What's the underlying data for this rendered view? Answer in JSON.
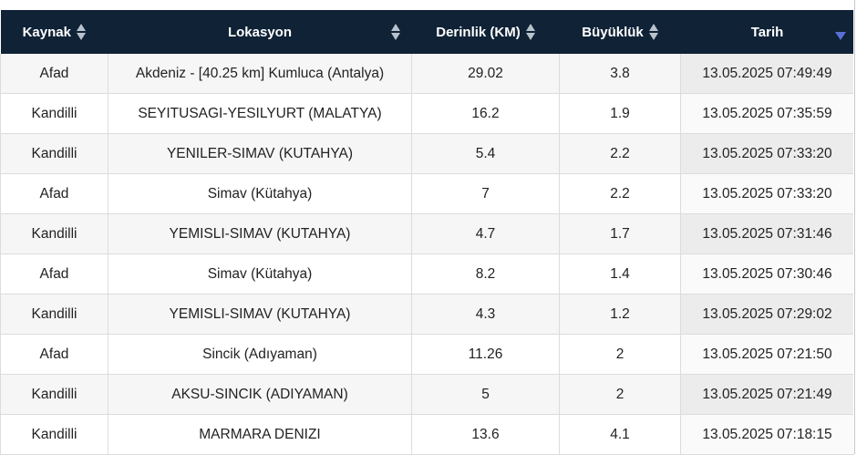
{
  "table": {
    "headers": {
      "source": "Kaynak",
      "location": "Lokasyon",
      "depth": "Derinlik (KM)",
      "magnitude": "Büyüklük",
      "date": "Tarih"
    },
    "sort_icon": "sort-updown-icon",
    "active_sort_icon": "sort-descending-icon",
    "rows": [
      {
        "source": "Afad",
        "location": "Akdeniz - [40.25 km] Kumluca (Antalya)",
        "depth": "29.02",
        "magnitude": "3.8",
        "date": "13.05.2025 07:49:49"
      },
      {
        "source": "Kandilli",
        "location": "SEYITUSAGI-YESILYURT (MALATYA)",
        "depth": "16.2",
        "magnitude": "1.9",
        "date": "13.05.2025 07:35:59"
      },
      {
        "source": "Kandilli",
        "location": "YENILER-SIMAV (KUTAHYA)",
        "depth": "5.4",
        "magnitude": "2.2",
        "date": "13.05.2025 07:33:20"
      },
      {
        "source": "Afad",
        "location": "Simav (Kütahya)",
        "depth": "7",
        "magnitude": "2.2",
        "date": "13.05.2025 07:33:20"
      },
      {
        "source": "Kandilli",
        "location": "YEMISLI-SIMAV (KUTAHYA)",
        "depth": "4.7",
        "magnitude": "1.7",
        "date": "13.05.2025 07:31:46"
      },
      {
        "source": "Afad",
        "location": "Simav (Kütahya)",
        "depth": "8.2",
        "magnitude": "1.4",
        "date": "13.05.2025 07:30:46"
      },
      {
        "source": "Kandilli",
        "location": "YEMISLI-SIMAV (KUTAHYA)",
        "depth": "4.3",
        "magnitude": "1.2",
        "date": "13.05.2025 07:29:02"
      },
      {
        "source": "Afad",
        "location": "Sincik (Adıyaman)",
        "depth": "11.26",
        "magnitude": "2",
        "date": "13.05.2025 07:21:50"
      },
      {
        "source": "Kandilli",
        "location": "AKSU-SINCIK (ADIYAMAN)",
        "depth": "5",
        "magnitude": "2",
        "date": "13.05.2025 07:21:49"
      },
      {
        "source": "Kandilli",
        "location": "MARMARA DENIZI",
        "depth": "13.6",
        "magnitude": "4.1",
        "date": "13.05.2025 07:18:15"
      }
    ]
  },
  "colors": {
    "header_bg": "#0f2236",
    "header_text": "#ffffff",
    "sort_icon": "#b8c2cc",
    "active_sort_icon": "#5b6fd6"
  }
}
